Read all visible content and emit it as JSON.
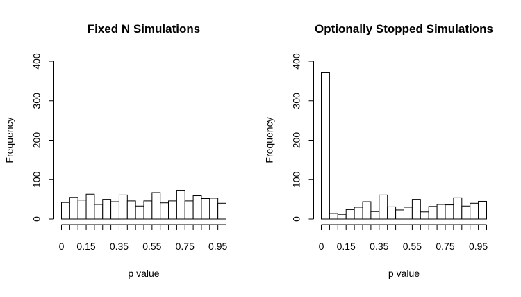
{
  "chart_data": [
    {
      "type": "bar",
      "title": "Fixed N Simulations",
      "xlabel": "p value",
      "ylabel": "Frequency",
      "xlim": [
        0,
        1
      ],
      "ylim": [
        0,
        400
      ],
      "x_tick_labels": [
        "0",
        "0.15",
        "0.35",
        "0.55",
        "0.75",
        "0.95"
      ],
      "y_tick_labels": [
        "0",
        "100",
        "200",
        "300",
        "400"
      ],
      "bin_width": 0.05,
      "bins_start": [
        0,
        0.05,
        0.1,
        0.15,
        0.2,
        0.25,
        0.3,
        0.35,
        0.4,
        0.45,
        0.5,
        0.55,
        0.6,
        0.65,
        0.7,
        0.75,
        0.8,
        0.85,
        0.9,
        0.95
      ],
      "values": [
        42,
        55,
        48,
        63,
        37,
        50,
        44,
        61,
        46,
        33,
        46,
        67,
        41,
        46,
        73,
        46,
        59,
        52,
        53,
        40
      ]
    },
    {
      "type": "bar",
      "title": "Optionally Stopped Simulations",
      "xlabel": "p value",
      "ylabel": "Frequency",
      "xlim": [
        0,
        1
      ],
      "ylim": [
        0,
        400
      ],
      "x_tick_labels": [
        "0",
        "0.15",
        "0.35",
        "0.55",
        "0.75",
        "0.95"
      ],
      "y_tick_labels": [
        "0",
        "100",
        "200",
        "300",
        "400"
      ],
      "bin_width": 0.05,
      "bins_start": [
        0,
        0.05,
        0.1,
        0.15,
        0.2,
        0.25,
        0.3,
        0.35,
        0.4,
        0.45,
        0.5,
        0.55,
        0.6,
        0.65,
        0.7,
        0.75,
        0.8,
        0.85,
        0.9,
        0.95
      ],
      "values": [
        371,
        14,
        12,
        24,
        30,
        44,
        19,
        61,
        31,
        23,
        30,
        50,
        18,
        32,
        37,
        36,
        54,
        33,
        40,
        45
      ]
    }
  ]
}
